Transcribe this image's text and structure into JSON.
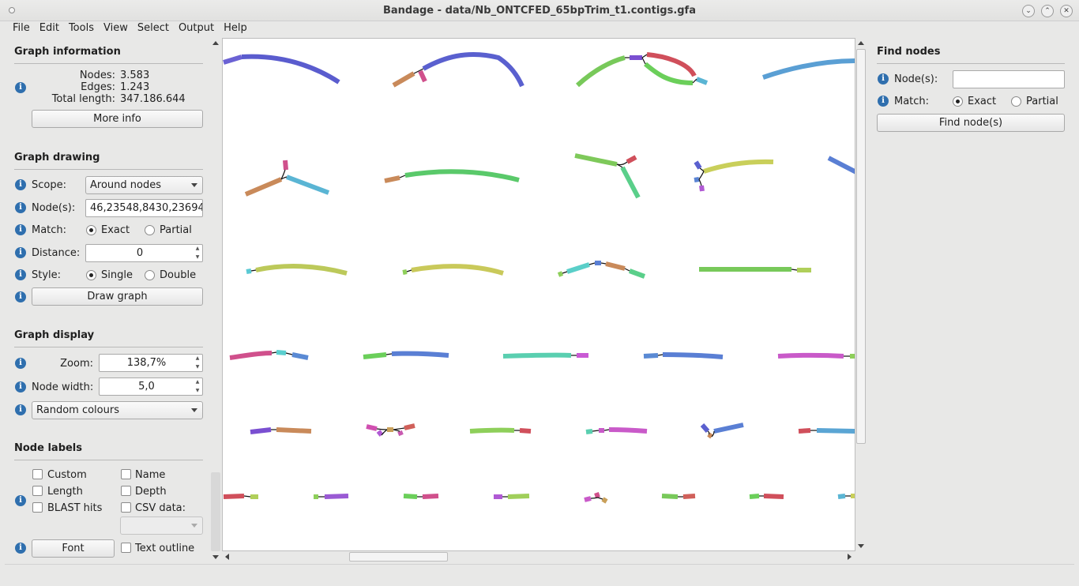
{
  "window": {
    "title": "Bandage - data/Nb_ONTCFED_65bpTrim_t1.contigs.gfa",
    "controls": [
      "chevron-down-icon",
      "chevron-up-icon",
      "close-icon"
    ]
  },
  "menu": [
    "File",
    "Edit",
    "Tools",
    "View",
    "Select",
    "Output",
    "Help"
  ],
  "graph_info": {
    "title": "Graph information",
    "nodes_label": "Nodes:",
    "nodes": "3.583",
    "edges_label": "Edges:",
    "edges": "1.243",
    "length_label": "Total length:",
    "length": "347.186.644",
    "more_info": "More info"
  },
  "graph_drawing": {
    "title": "Graph drawing",
    "scope_label": "Scope:",
    "scope_value": "Around nodes",
    "nodes_label": "Node(s):",
    "nodes_value": "46,23548,8430,23694",
    "match_label": "Match:",
    "match_exact": "Exact",
    "match_partial": "Partial",
    "match_selected": "Exact",
    "distance_label": "Distance:",
    "distance_value": "0",
    "style_label": "Style:",
    "style_single": "Single",
    "style_double": "Double",
    "style_selected": "Single",
    "draw_button": "Draw graph"
  },
  "graph_display": {
    "title": "Graph display",
    "zoom_label": "Zoom:",
    "zoom_value": "138,7%",
    "width_label": "Node width:",
    "width_value": "5,0",
    "colour_scheme": "Random colours"
  },
  "node_labels": {
    "title": "Node labels",
    "custom": "Custom",
    "name": "Name",
    "length": "Length",
    "depth": "Depth",
    "blast": "BLAST hits",
    "csv": "CSV data:",
    "font_button": "Font",
    "text_outline": "Text outline"
  },
  "find_nodes": {
    "title": "Find nodes",
    "nodes_label": "Node(s):",
    "nodes_value": "",
    "match_label": "Match:",
    "match_exact": "Exact",
    "match_partial": "Partial",
    "match_selected": "Exact",
    "find_button": "Find node(s)"
  },
  "colors": {
    "canvas": "#ffffff",
    "info_icon": "#2f6fae"
  }
}
